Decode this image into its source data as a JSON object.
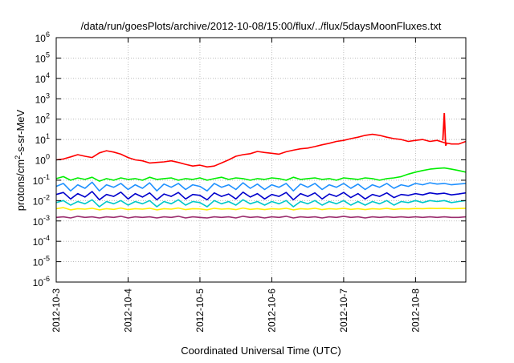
{
  "chart_data": {
    "type": "line",
    "title": "/data/run/goesPlots/archive/2012-10-08/15:00/flux/../flux/5daysMoonFluxes.txt",
    "xlabel": "Coordinated Universal Time (UTC)",
    "ylabel": "protons/cm2-s-sr-MeV",
    "yscale": "log",
    "ylim": [
      1e-06,
      1000000.0
    ],
    "xlim": [
      0,
      5.7
    ],
    "x_tick_labels": [
      "2012-10-3",
      "2012-10-4",
      "2012-10-5",
      "2012-10-6",
      "2012-10-7",
      "2012-10-8"
    ],
    "x_tick_values": [
      0,
      1,
      2,
      3,
      4,
      5
    ],
    "y_tick_exponents": [
      -6,
      -5,
      -4,
      -3,
      -2,
      -1,
      0,
      1,
      2,
      3,
      4,
      5,
      6
    ],
    "grid": true,
    "x": [
      0,
      0.1,
      0.2,
      0.3,
      0.4,
      0.5,
      0.6,
      0.7,
      0.8,
      0.9,
      1.0,
      1.1,
      1.2,
      1.3,
      1.4,
      1.5,
      1.6,
      1.7,
      1.8,
      1.9,
      2.0,
      2.1,
      2.2,
      2.3,
      2.4,
      2.5,
      2.6,
      2.7,
      2.8,
      2.9,
      3.0,
      3.1,
      3.2,
      3.3,
      3.4,
      3.5,
      3.6,
      3.7,
      3.8,
      3.9,
      4.0,
      4.1,
      4.2,
      4.3,
      4.4,
      4.5,
      4.6,
      4.7,
      4.8,
      4.9,
      5.0,
      5.1,
      5.2,
      5.3,
      5.4,
      5.5,
      5.6,
      5.7
    ],
    "series": [
      {
        "color": "#ff0000",
        "values": [
          1.0,
          1.1,
          1.4,
          1.8,
          1.5,
          1.3,
          2.2,
          2.8,
          2.4,
          1.9,
          1.3,
          1.0,
          0.9,
          0.7,
          0.75,
          0.8,
          0.9,
          0.75,
          0.6,
          0.5,
          0.55,
          0.45,
          0.5,
          0.7,
          1.0,
          1.5,
          1.8,
          2.0,
          2.6,
          2.3,
          2.1,
          1.9,
          2.5,
          3.0,
          3.5,
          3.8,
          4.5,
          5.5,
          6.5,
          8.0,
          9.0,
          11,
          13,
          16,
          18,
          16,
          13,
          11,
          10,
          8,
          9,
          10,
          8,
          9,
          7,
          6,
          6,
          8
        ]
      },
      {
        "color": "#00ee00",
        "values": [
          0.12,
          0.15,
          0.1,
          0.13,
          0.11,
          0.14,
          0.09,
          0.12,
          0.1,
          0.13,
          0.11,
          0.12,
          0.1,
          0.14,
          0.11,
          0.12,
          0.13,
          0.1,
          0.12,
          0.11,
          0.13,
          0.1,
          0.12,
          0.14,
          0.11,
          0.13,
          0.12,
          0.1,
          0.12,
          0.11,
          0.13,
          0.12,
          0.1,
          0.14,
          0.11,
          0.12,
          0.13,
          0.11,
          0.12,
          0.1,
          0.13,
          0.12,
          0.11,
          0.13,
          0.12,
          0.1,
          0.12,
          0.13,
          0.15,
          0.2,
          0.25,
          0.3,
          0.35,
          0.38,
          0.4,
          0.35,
          0.3,
          0.25
        ]
      },
      {
        "color": "#1e90ff",
        "values": [
          0.05,
          0.07,
          0.03,
          0.06,
          0.04,
          0.08,
          0.03,
          0.06,
          0.045,
          0.07,
          0.035,
          0.06,
          0.04,
          0.075,
          0.03,
          0.065,
          0.045,
          0.07,
          0.035,
          0.06,
          0.05,
          0.03,
          0.07,
          0.045,
          0.06,
          0.035,
          0.075,
          0.04,
          0.065,
          0.035,
          0.06,
          0.045,
          0.07,
          0.03,
          0.065,
          0.045,
          0.07,
          0.035,
          0.06,
          0.045,
          0.07,
          0.04,
          0.065,
          0.035,
          0.06,
          0.045,
          0.07,
          0.04,
          0.06,
          0.05,
          0.07,
          0.06,
          0.075,
          0.065,
          0.07,
          0.06,
          0.065,
          0.07
        ]
      },
      {
        "color": "#0000cc",
        "values": [
          0.02,
          0.025,
          0.012,
          0.022,
          0.015,
          0.028,
          0.011,
          0.02,
          0.016,
          0.026,
          0.012,
          0.022,
          0.015,
          0.024,
          0.011,
          0.021,
          0.016,
          0.025,
          0.012,
          0.02,
          0.018,
          0.011,
          0.024,
          0.016,
          0.021,
          0.012,
          0.026,
          0.015,
          0.022,
          0.012,
          0.02,
          0.016,
          0.025,
          0.011,
          0.022,
          0.016,
          0.024,
          0.012,
          0.021,
          0.016,
          0.025,
          0.014,
          0.022,
          0.012,
          0.02,
          0.016,
          0.024,
          0.014,
          0.02,
          0.018,
          0.022,
          0.019,
          0.024,
          0.021,
          0.023,
          0.019,
          0.021,
          0.024
        ]
      },
      {
        "color": "#00c8c8",
        "values": [
          0.008,
          0.01,
          0.006,
          0.009,
          0.007,
          0.011,
          0.005,
          0.009,
          0.007,
          0.01,
          0.006,
          0.009,
          0.007,
          0.01,
          0.005,
          0.009,
          0.007,
          0.011,
          0.006,
          0.009,
          0.008,
          0.005,
          0.01,
          0.007,
          0.009,
          0.006,
          0.011,
          0.007,
          0.009,
          0.006,
          0.009,
          0.007,
          0.01,
          0.005,
          0.009,
          0.007,
          0.01,
          0.006,
          0.009,
          0.007,
          0.01,
          0.006,
          0.009,
          0.006,
          0.009,
          0.007,
          0.01,
          0.006,
          0.009,
          0.008,
          0.01,
          0.008,
          0.01,
          0.009,
          0.01,
          0.008,
          0.009,
          0.01
        ]
      },
      {
        "color": "#ffee00",
        "values": [
          0.004,
          0.0045,
          0.0035,
          0.004,
          0.0038,
          0.0042,
          0.0035,
          0.004,
          0.0037,
          0.0043,
          0.0036,
          0.004,
          0.0038,
          0.0042,
          0.0035,
          0.004,
          0.0038,
          0.0043,
          0.0036,
          0.004,
          0.0039,
          0.0035,
          0.0042,
          0.0038,
          0.004,
          0.0036,
          0.0043,
          0.0037,
          0.004,
          0.0036,
          0.004,
          0.0038,
          0.0042,
          0.0035,
          0.004,
          0.0038,
          0.0042,
          0.0036,
          0.004,
          0.0038,
          0.0042,
          0.0037,
          0.004,
          0.0036,
          0.004,
          0.0038,
          0.0042,
          0.0037,
          0.004,
          0.0039,
          0.0041,
          0.004,
          0.0042,
          0.0041,
          0.0042,
          0.004,
          0.0041,
          0.0042
        ]
      },
      {
        "color": "#9b2d6e",
        "values": [
          0.0015,
          0.0016,
          0.0014,
          0.0017,
          0.0015,
          0.0016,
          0.0014,
          0.0016,
          0.0015,
          0.0017,
          0.0014,
          0.0016,
          0.0015,
          0.0016,
          0.0014,
          0.0016,
          0.0015,
          0.0017,
          0.0014,
          0.0016,
          0.0015,
          0.0014,
          0.0016,
          0.0015,
          0.0016,
          0.0014,
          0.0017,
          0.0015,
          0.0016,
          0.0014,
          0.0016,
          0.0015,
          0.0017,
          0.0014,
          0.0016,
          0.0015,
          0.0016,
          0.0014,
          0.0016,
          0.0015,
          0.0017,
          0.0015,
          0.0016,
          0.0014,
          0.0016,
          0.0015,
          0.0016,
          0.0015,
          0.0016,
          0.0015,
          0.0016,
          0.0015,
          0.0016,
          0.0015,
          0.0016,
          0.0015,
          0.0015,
          0.0016
        ]
      }
    ],
    "red_spike": {
      "x": [
        5.38,
        5.4,
        5.42,
        5.44
      ],
      "values": [
        9,
        200,
        5,
        7
      ]
    }
  }
}
